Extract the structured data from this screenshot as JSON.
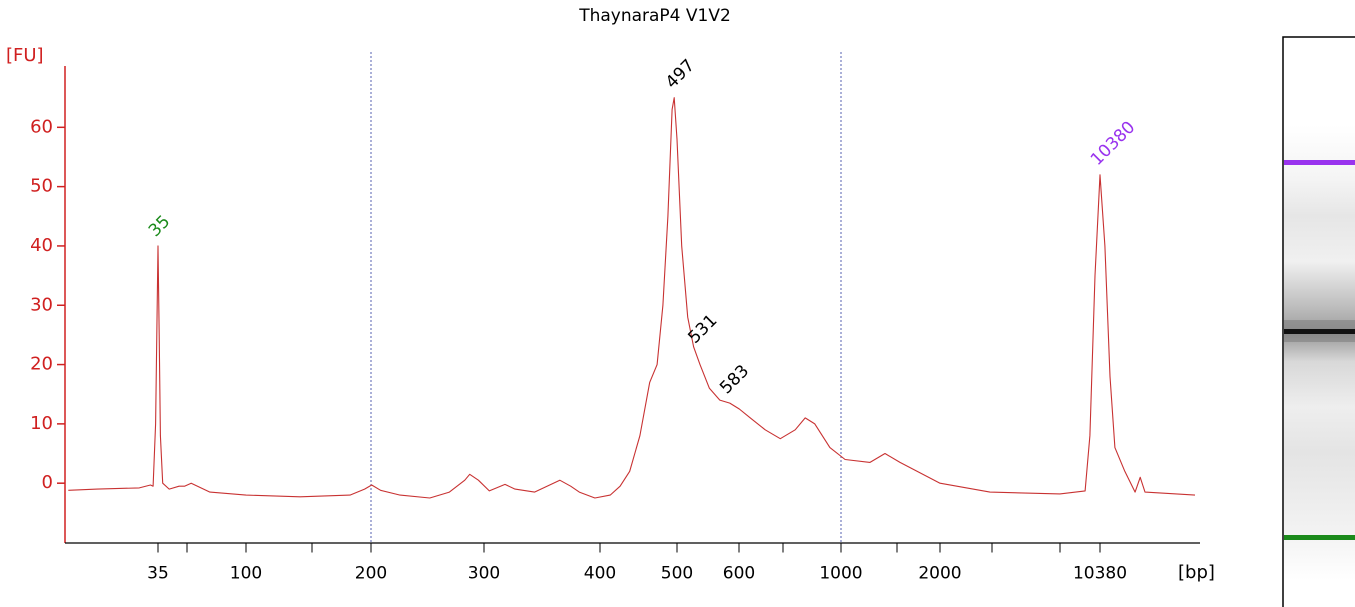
{
  "chart_data": {
    "type": "line",
    "title": "ThaynaraP4 V1V2",
    "y_label": "[FU]",
    "x_label": "[bp]",
    "color": "#c83232",
    "ylim": [
      -10,
      70
    ],
    "yticks": [
      0,
      10,
      20,
      30,
      40,
      50,
      60
    ],
    "xticks": [
      35,
      100,
      200,
      300,
      400,
      500,
      600,
      1000,
      2000,
      10380
    ],
    "x_scale": "log",
    "ref_lines": [
      200,
      1000
    ],
    "x": [
      12,
      17,
      28,
      32,
      33,
      34,
      34.5,
      35,
      35.5,
      36,
      37,
      40,
      45,
      48,
      52,
      65,
      100,
      135,
      178,
      193,
      200.5,
      207,
      222,
      247,
      265,
      280,
      285,
      294,
      304,
      316,
      324,
      340,
      362,
      372,
      380,
      395,
      412,
      424,
      436,
      449,
      462,
      472,
      480,
      487,
      493,
      496,
      500,
      507,
      516,
      525,
      535,
      550,
      567,
      584,
      601,
      635,
      684,
      738,
      795,
      836,
      877,
      946,
      1029,
      1225,
      1361,
      1512,
      2000,
      3342,
      6870,
      8900,
      9360,
      9860,
      10380,
      10920,
      11500,
      12100,
      13400,
      14900,
      15700,
      16500,
      27600
    ],
    "values": [
      -1.2,
      -1,
      -0.8,
      -0.3,
      -0.5,
      10,
      25,
      40,
      25,
      8,
      0,
      -1,
      -0.5,
      -0.5,
      0,
      -1.5,
      -2,
      -2.3,
      -2,
      -1,
      -0.3,
      -1.2,
      -2,
      -2.5,
      -1.5,
      0.5,
      1.5,
      0.5,
      -1.3,
      -0.2,
      -1,
      -1.5,
      0.5,
      -0.5,
      -1.5,
      -2.5,
      -2,
      -0.5,
      2,
      8,
      17,
      20,
      30,
      45,
      63,
      65,
      58,
      40,
      28,
      23,
      20,
      16,
      14,
      13.5,
      12.5,
      11,
      9,
      7.5,
      9,
      11,
      10,
      6,
      4,
      3.5,
      5,
      3.5,
      0,
      -1.5,
      -1.8,
      -1.3,
      8,
      35,
      52,
      40,
      18,
      6,
      2,
      -1.5,
      1,
      -1.5,
      -2
    ],
    "peaks": [
      {
        "size": 35,
        "height": 40,
        "color": "#1a8a1a"
      },
      {
        "size": 497,
        "height": 65,
        "color": "#000000"
      },
      {
        "size": 531,
        "height": 22,
        "color": "#000000"
      },
      {
        "size": 583,
        "height": 13.5,
        "color": "#000000"
      },
      {
        "size": 10380,
        "height": 52,
        "color": "#9933ee"
      }
    ]
  }
}
